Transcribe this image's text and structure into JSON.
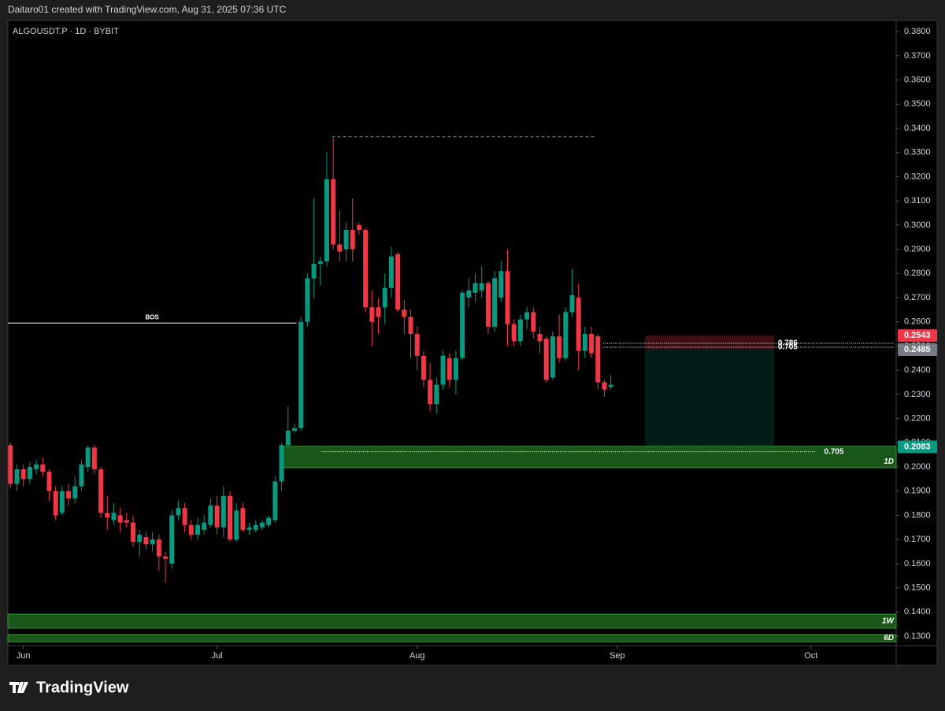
{
  "header": "Daitaro01 created with TradingView.com, Aug 31, 2025 07:36 UTC",
  "footer_brand": "TradingView",
  "chart_data": {
    "type": "candlestick",
    "title": "ALGOUSDT.P · 1D · BYBIT",
    "up_color": "#089981",
    "down_color": "#f23645",
    "open": [
      0.209,
      0.193,
      0.199,
      0.195,
      0.199,
      0.201,
      0.198,
      0.19,
      0.181,
      0.19,
      0.187,
      0.192,
      0.2,
      0.208,
      0.199,
      0.181,
      0.178,
      0.18,
      0.178,
      0.177,
      0.169,
      0.171,
      0.168,
      0.17,
      0.163,
      0.16,
      0.18,
      0.183,
      0.176,
      0.172,
      0.174,
      0.176,
      0.184,
      0.175,
      0.188,
      0.17,
      0.183,
      0.174,
      0.174,
      0.175,
      0.176,
      0.178,
      0.194,
      0.209,
      0.215,
      0.216,
      0.26,
      0.278,
      0.284,
      0.285,
      0.319,
      0.292,
      0.29,
      0.298,
      0.3,
      0.298,
      0.266,
      0.266,
      0.266,
      0.274,
      0.288,
      0.265,
      0.262,
      0.255,
      0.246,
      0.236,
      0.226,
      0.234,
      0.245,
      0.236,
      0.245,
      0.27,
      0.272,
      0.273,
      0.276,
      0.258,
      0.27,
      0.281,
      0.259,
      0.252,
      0.261,
      0.264,
      0.255,
      0.253,
      0.237,
      0.254,
      0.245,
      0.264,
      0.27,
      0.248,
      0.255,
      0.254,
      0.235,
      0.233
    ],
    "high": [
      0.21,
      0.201,
      0.201,
      0.202,
      0.203,
      0.204,
      0.199,
      0.192,
      0.192,
      0.193,
      0.196,
      0.203,
      0.209,
      0.209,
      0.2,
      0.188,
      0.185,
      0.183,
      0.181,
      0.18,
      0.174,
      0.173,
      0.173,
      0.172,
      0.165,
      0.182,
      0.186,
      0.185,
      0.178,
      0.179,
      0.18,
      0.187,
      0.188,
      0.192,
      0.19,
      0.185,
      0.185,
      0.177,
      0.178,
      0.178,
      0.18,
      0.196,
      0.21,
      0.225,
      0.218,
      0.262,
      0.28,
      0.311,
      0.287,
      0.33,
      0.336,
      0.306,
      0.301,
      0.311,
      0.301,
      0.299,
      0.273,
      0.27,
      0.28,
      0.291,
      0.289,
      0.269,
      0.265,
      0.258,
      0.248,
      0.243,
      0.237,
      0.248,
      0.247,
      0.248,
      0.273,
      0.278,
      0.28,
      0.283,
      0.277,
      0.281,
      0.285,
      0.29,
      0.261,
      0.263,
      0.266,
      0.266,
      0.258,
      0.254,
      0.256,
      0.263,
      0.266,
      0.282,
      0.276,
      0.258,
      0.258,
      0.255,
      0.236,
      0.238
    ],
    "low": [
      0.191,
      0.19,
      0.192,
      0.193,
      0.197,
      0.196,
      0.186,
      0.178,
      0.18,
      0.184,
      0.185,
      0.19,
      0.198,
      0.197,
      0.179,
      0.174,
      0.176,
      0.173,
      0.175,
      0.167,
      0.163,
      0.166,
      0.165,
      0.157,
      0.152,
      0.158,
      0.178,
      0.173,
      0.17,
      0.17,
      0.172,
      0.175,
      0.172,
      0.171,
      0.169,
      0.169,
      0.173,
      0.172,
      0.173,
      0.174,
      0.175,
      0.177,
      0.19,
      0.208,
      0.214,
      0.215,
      0.258,
      0.27,
      0.275,
      0.283,
      0.29,
      0.285,
      0.285,
      0.285,
      0.296,
      0.264,
      0.25,
      0.255,
      0.259,
      0.27,
      0.264,
      0.255,
      0.245,
      0.24,
      0.233,
      0.223,
      0.222,
      0.232,
      0.233,
      0.23,
      0.244,
      0.266,
      0.268,
      0.27,
      0.255,
      0.256,
      0.268,
      0.25,
      0.25,
      0.25,
      0.257,
      0.253,
      0.247,
      0.235,
      0.236,
      0.243,
      0.244,
      0.262,
      0.24,
      0.245,
      0.245,
      0.232,
      0.229,
      0.232
    ],
    "close": [
      0.193,
      0.199,
      0.195,
      0.2,
      0.201,
      0.198,
      0.19,
      0.18,
      0.19,
      0.187,
      0.192,
      0.201,
      0.208,
      0.199,
      0.181,
      0.179,
      0.181,
      0.177,
      0.177,
      0.169,
      0.172,
      0.168,
      0.17,
      0.163,
      0.162,
      0.18,
      0.183,
      0.176,
      0.172,
      0.176,
      0.177,
      0.184,
      0.175,
      0.188,
      0.17,
      0.182,
      0.174,
      0.175,
      0.176,
      0.177,
      0.179,
      0.194,
      0.209,
      0.215,
      0.216,
      0.26,
      0.278,
      0.284,
      0.285,
      0.319,
      0.292,
      0.289,
      0.298,
      0.29,
      0.298,
      0.266,
      0.26,
      0.262,
      0.274,
      0.287,
      0.265,
      0.262,
      0.255,
      0.246,
      0.236,
      0.226,
      0.234,
      0.246,
      0.236,
      0.245,
      0.272,
      0.273,
      0.276,
      0.276,
      0.258,
      0.278,
      0.281,
      0.259,
      0.252,
      0.261,
      0.264,
      0.256,
      0.252,
      0.236,
      0.254,
      0.245,
      0.264,
      0.271,
      0.248,
      0.255,
      0.247,
      0.235,
      0.232,
      0.234
    ],
    "xlim": [
      -0.4,
      137.2
    ],
    "xticks": [
      {
        "value": 2,
        "label": "Jun"
      },
      {
        "value": 32,
        "label": "Jul"
      },
      {
        "value": 63,
        "label": "Aug"
      },
      {
        "value": 94,
        "label": "Sep"
      },
      {
        "value": 124,
        "label": "Oct"
      }
    ],
    "ylim": [
      0.1261,
      0.3846
    ],
    "yticks": [
      {
        "value": 0.13,
        "label": "0.1300"
      },
      {
        "value": 0.14,
        "label": "0.1400"
      },
      {
        "value": 0.15,
        "label": "0.1500"
      },
      {
        "value": 0.16,
        "label": "0.1600"
      },
      {
        "value": 0.17,
        "label": "0.1700"
      },
      {
        "value": 0.18,
        "label": "0.1800"
      },
      {
        "value": 0.19,
        "label": "0.1900"
      },
      {
        "value": 0.2,
        "label": "0.2000"
      },
      {
        "value": 0.21,
        "label": "0.2100"
      },
      {
        "value": 0.22,
        "label": "0.2200"
      },
      {
        "value": 0.23,
        "label": "0.2300"
      },
      {
        "value": 0.24,
        "label": "0.2400"
      },
      {
        "value": 0.25,
        "label": "0.2500"
      },
      {
        "value": 0.26,
        "label": "0.2600"
      },
      {
        "value": 0.27,
        "label": "0.2700"
      },
      {
        "value": 0.28,
        "label": "0.2800"
      },
      {
        "value": 0.29,
        "label": "0.2900"
      },
      {
        "value": 0.3,
        "label": "0.3000"
      },
      {
        "value": 0.31,
        "label": "0.3100"
      },
      {
        "value": 0.32,
        "label": "0.3200"
      },
      {
        "value": 0.33,
        "label": "0.3300"
      },
      {
        "value": 0.34,
        "label": "0.3400"
      },
      {
        "value": 0.35,
        "label": "0.3500"
      },
      {
        "value": 0.36,
        "label": "0.3600"
      },
      {
        "value": 0.37,
        "label": "0.3700"
      },
      {
        "value": 0.38,
        "label": "0.3800"
      }
    ],
    "zones": [
      {
        "label": "1D",
        "y": [
          0.1997,
          0.2085
        ],
        "x": [
          41.7,
          137.2
        ],
        "color": "#2e9e2e"
      },
      {
        "label": "1W",
        "y": [
          0.1333,
          0.1391
        ],
        "x": [
          -0.4,
          137.2
        ],
        "color": "#2e9e2e"
      },
      {
        "label": "6D",
        "y": [
          0.1277,
          0.1307
        ],
        "x": [
          -0.4,
          137.2
        ],
        "color": "#2e9e2e"
      }
    ],
    "lines": [
      {
        "label": "BOS",
        "y": 0.2595,
        "x": [
          -0.4,
          44.3
        ],
        "color": "#ffffff",
        "dashed": false
      },
      {
        "y": 0.3365,
        "x": [
          49.8,
          90.6
        ],
        "color": "#4caf50",
        "dashed": true
      }
    ],
    "fib_levels": [
      {
        "label": "0.786",
        "y": 0.2511,
        "x": [
          91.8,
          136.8
        ]
      },
      {
        "label": "0.705",
        "y": 0.2495,
        "x": [
          91.8,
          136.8
        ]
      },
      {
        "label": "0.705",
        "y": 0.2063,
        "x": [
          48.2,
          124.8
        ]
      }
    ],
    "price_tags": [
      {
        "value": 0.2543,
        "label": "0.2543",
        "color": "#f23645"
      },
      {
        "value": 0.2485,
        "label": "0.2485",
        "color": "#787b86"
      },
      {
        "value": 0.2083,
        "label": "0.2083",
        "color": "#089981"
      }
    ],
    "position_x": [
      98.3,
      118.3
    ]
  }
}
